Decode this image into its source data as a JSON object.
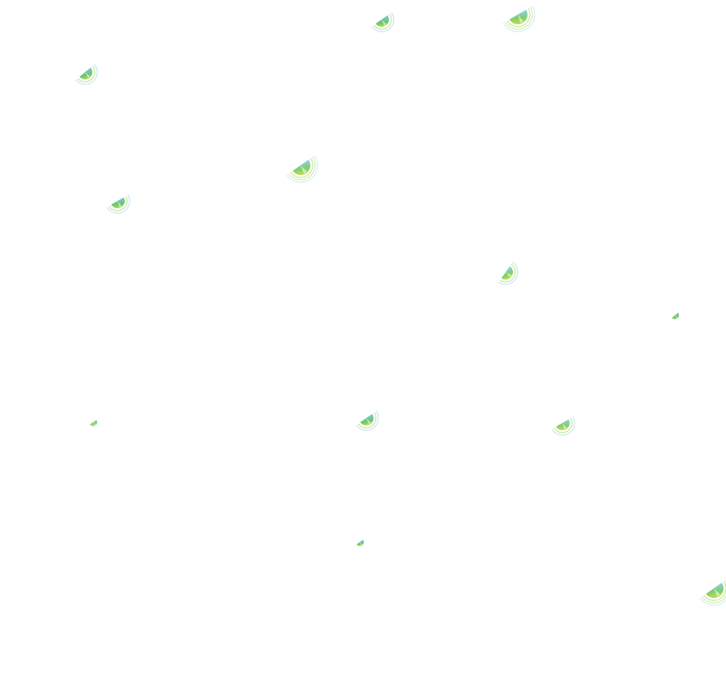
{
  "background": "#ffffff",
  "palette": {
    "yellow_green": "#c8e64a",
    "green": "#6cc76a",
    "blue": "#7fc6e6",
    "ring": "#9fd4ee"
  },
  "icons": [
    "wedge-icon",
    "wedge-with-arcs-icon"
  ]
}
